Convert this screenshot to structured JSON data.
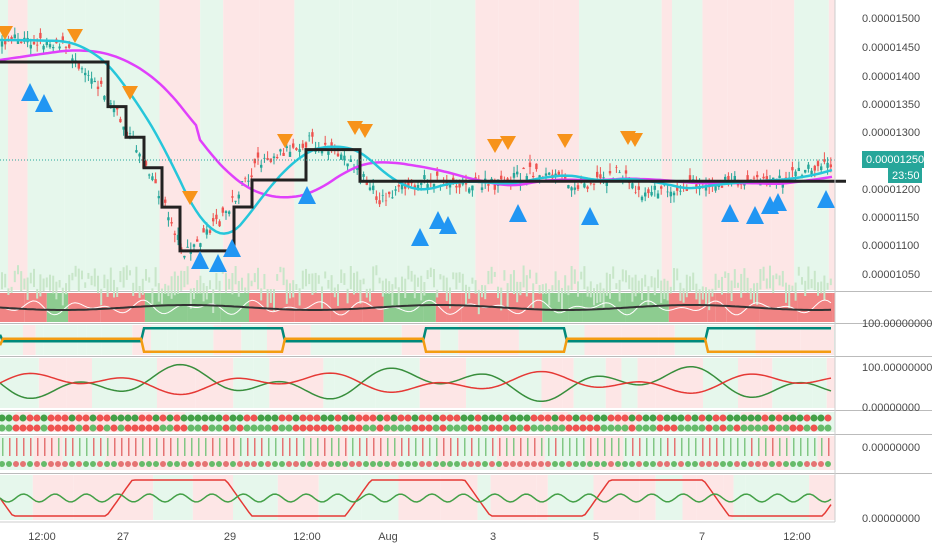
{
  "price_axis": {
    "labels": [
      "0.00001500",
      "0.00001450",
      "0.00001400",
      "0.00001350",
      "0.00001300",
      "0.00001200",
      "0.00001150",
      "0.00001100",
      "0.00001050"
    ],
    "current_price": "0.00001250",
    "countdown": "23:50"
  },
  "indicator_axes": [
    "100.00000000",
    "100.00000000",
    "0.00000000",
    "0.00000000",
    "0.00000000"
  ],
  "time_axis": [
    "12:00",
    "27",
    "29",
    "12:00",
    "Aug",
    "3",
    "5",
    "7",
    "12:00"
  ]
}
